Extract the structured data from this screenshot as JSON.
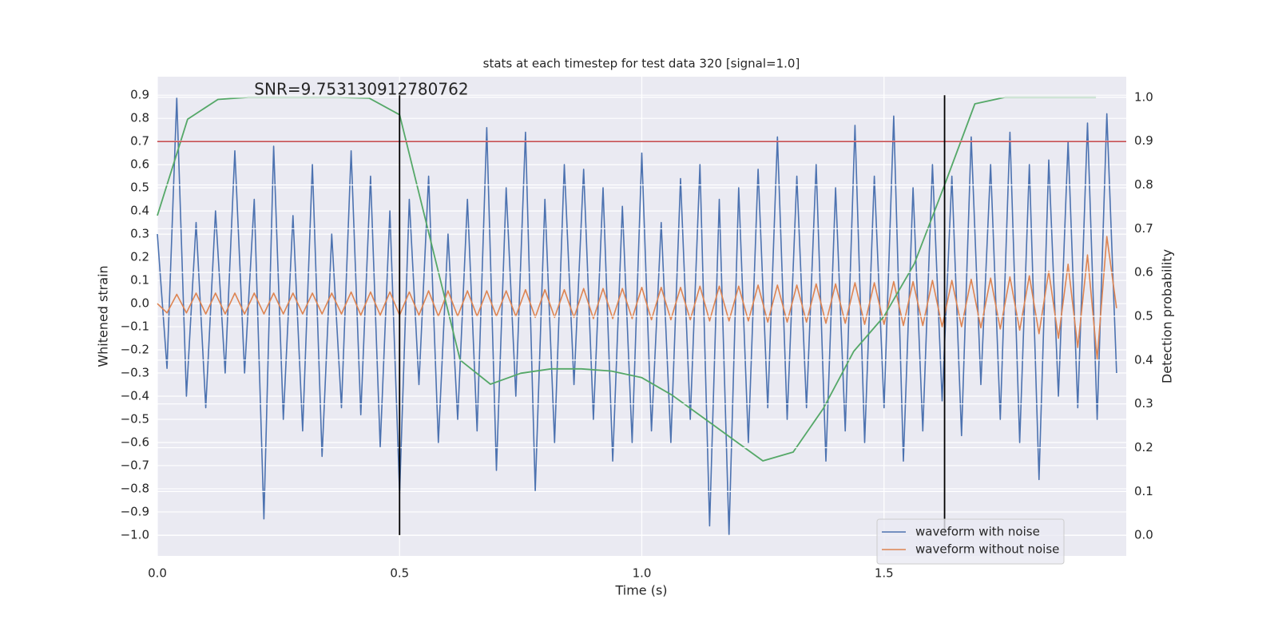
{
  "chart_data": {
    "type": "line",
    "title": "stats at each timestep for test data 320 [signal=1.0]",
    "x_label": "Time (s)",
    "y_label": "Whitened strain",
    "y2_label": "Detection probability",
    "annotation": {
      "text": "SNR=9.753130912780762",
      "x": 0.2,
      "y": 0.9
    },
    "xlim": [
      0,
      2.0
    ],
    "xticks": [
      {
        "value": 0,
        "label": "0.0"
      },
      0.5,
      {
        "value": 1,
        "label": "1.0"
      },
      1.5
    ],
    "ylim": [
      -1.09,
      0.98
    ],
    "yticks": [
      {
        "value": -1.0,
        "label": "−1.0"
      },
      {
        "value": -0.9,
        "label": "−0.9"
      },
      {
        "value": -0.8,
        "label": "−0.8"
      },
      {
        "value": -0.7,
        "label": "−0.7"
      },
      {
        "value": -0.6,
        "label": "−0.6"
      },
      {
        "value": -0.5,
        "label": "−0.5"
      },
      {
        "value": -0.4,
        "label": "−0.4"
      },
      {
        "value": -0.3,
        "label": "−0.3"
      },
      {
        "value": -0.2,
        "label": "−0.2"
      },
      {
        "value": -0.1,
        "label": "−0.1"
      },
      {
        "value": 0,
        "label": "0.0"
      },
      0.1,
      0.2,
      0.3,
      0.4,
      0.5,
      0.6,
      0.7,
      0.8,
      0.9
    ],
    "y2lim": [
      -0.047,
      1.047
    ],
    "y2ticks": [
      {
        "value": 0,
        "label": "0.0"
      },
      0.1,
      0.2,
      0.3,
      0.4,
      0.5,
      0.6,
      0.7,
      0.8,
      0.9,
      {
        "value": 1,
        "label": "1.0"
      }
    ],
    "grid": true,
    "legend": "lower right",
    "x": [
      0,
      0.02,
      0.04,
      0.06,
      0.08,
      0.1,
      0.12,
      0.14,
      0.16,
      0.18,
      0.2,
      0.22,
      0.24,
      0.26,
      0.28,
      0.3,
      0.32,
      0.34,
      0.36,
      0.38,
      0.4,
      0.42,
      0.44,
      0.46,
      0.48,
      0.5,
      0.52,
      0.54,
      0.56,
      0.58,
      0.6,
      0.62,
      0.64,
      0.66,
      0.68,
      0.7,
      0.72,
      0.74,
      0.76,
      0.78,
      0.8,
      0.82,
      0.84,
      0.86,
      0.88,
      0.9,
      0.92,
      0.94,
      0.96,
      0.98,
      1.0,
      1.02,
      1.04,
      1.06,
      1.08,
      1.1,
      1.12,
      1.14,
      1.16,
      1.18,
      1.2,
      1.22,
      1.24,
      1.26,
      1.28,
      1.3,
      1.32,
      1.34,
      1.36,
      1.38,
      1.4,
      1.42,
      1.44,
      1.46,
      1.48,
      1.5,
      1.52,
      1.54,
      1.56,
      1.58,
      1.6,
      1.62,
      1.64,
      1.66,
      1.68,
      1.7,
      1.72,
      1.74,
      1.76,
      1.78,
      1.8,
      1.82,
      1.84,
      1.86,
      1.88,
      1.9,
      1.92,
      1.94,
      1.96,
      1.98
    ],
    "series": [
      {
        "name": "waveform with noise",
        "color": "#4c72b0",
        "values": [
          0.3,
          -0.28,
          0.89,
          -0.4,
          0.35,
          -0.45,
          0.4,
          -0.3,
          0.66,
          -0.3,
          0.45,
          -0.93,
          0.68,
          -0.5,
          0.38,
          -0.55,
          0.6,
          -0.66,
          0.3,
          -0.45,
          0.66,
          -0.48,
          0.55,
          -0.62,
          0.4,
          -0.82,
          0.45,
          -0.35,
          0.55,
          -0.6,
          0.3,
          -0.5,
          0.45,
          -0.55,
          0.76,
          -0.72,
          0.5,
          -0.4,
          0.74,
          -0.81,
          0.45,
          -0.6,
          0.6,
          -0.35,
          0.58,
          -0.5,
          0.5,
          -0.68,
          0.42,
          -0.6,
          0.65,
          -0.55,
          0.35,
          -0.6,
          0.54,
          -0.5,
          0.6,
          -0.96,
          0.45,
          -1.0,
          0.5,
          -0.6,
          0.58,
          -0.45,
          0.72,
          -0.5,
          0.55,
          -0.45,
          0.6,
          -0.68,
          0.5,
          -0.55,
          0.77,
          -0.6,
          0.55,
          -0.45,
          0.81,
          -0.68,
          0.5,
          -0.55,
          0.6,
          -0.42,
          0.55,
          -0.57,
          0.72,
          -0.35,
          0.6,
          -0.5,
          0.74,
          -0.6,
          0.6,
          -0.76,
          0.62,
          -0.4,
          0.7,
          -0.45,
          0.78,
          -0.5,
          0.82,
          -0.3
        ]
      },
      {
        "name": "waveform without noise",
        "color": "#dd8452",
        "values": [
          0.0,
          -0.04,
          0.04,
          -0.04,
          0.045,
          -0.045,
          0.045,
          -0.045,
          0.045,
          -0.045,
          0.045,
          -0.045,
          0.045,
          -0.045,
          0.045,
          -0.045,
          0.045,
          -0.045,
          0.045,
          -0.045,
          0.05,
          -0.05,
          0.05,
          -0.05,
          0.05,
          -0.05,
          0.05,
          -0.05,
          0.055,
          -0.055,
          0.055,
          -0.055,
          0.055,
          -0.055,
          0.055,
          -0.055,
          0.055,
          -0.055,
          0.06,
          -0.06,
          0.06,
          -0.06,
          0.06,
          -0.06,
          0.065,
          -0.065,
          0.065,
          -0.065,
          0.065,
          -0.065,
          0.07,
          -0.07,
          0.07,
          -0.07,
          0.07,
          -0.07,
          0.075,
          -0.075,
          0.075,
          -0.075,
          0.075,
          -0.075,
          0.08,
          -0.08,
          0.08,
          -0.08,
          0.08,
          -0.08,
          0.085,
          -0.085,
          0.085,
          -0.085,
          0.09,
          -0.09,
          0.09,
          -0.09,
          0.095,
          -0.095,
          0.095,
          -0.095,
          0.1,
          -0.1,
          0.1,
          -0.1,
          0.105,
          -0.105,
          0.11,
          -0.11,
          0.115,
          -0.115,
          0.12,
          -0.13,
          0.14,
          -0.15,
          0.17,
          -0.19,
          0.21,
          -0.24,
          0.29,
          -0.02
        ]
      },
      {
        "color": "#55a868",
        "axis": "y2",
        "x": [
          0,
          0.0625,
          0.125,
          0.1875,
          0.25,
          0.3125,
          0.375,
          0.4375,
          0.5,
          0.5625,
          0.625,
          0.6875,
          0.75,
          0.8125,
          0.875,
          0.9375,
          1.0,
          1.0625,
          1.125,
          1.1875,
          1.25,
          1.3125,
          1.375,
          1.4375,
          1.5,
          1.5625,
          1.625,
          1.6875,
          1.75,
          1.8125,
          1.875,
          1.9375
        ],
        "values": [
          0.73,
          0.95,
          0.995,
          1.0,
          1.0,
          1.0,
          1.0,
          0.998,
          0.96,
          0.68,
          0.4,
          0.345,
          0.37,
          0.38,
          0.38,
          0.375,
          0.36,
          0.32,
          0.27,
          0.22,
          0.17,
          0.19,
          0.29,
          0.42,
          0.5,
          0.62,
          0.8,
          0.985,
          1.0,
          1.0,
          1.0,
          1.0
        ]
      }
    ],
    "hlines": [
      {
        "y": 0.7,
        "color": "#c44e52"
      }
    ],
    "vlines": [
      {
        "x": 0.5,
        "ymin": -1.0,
        "ymax": 0.9,
        "color": "#000000"
      },
      {
        "x": 1.625,
        "ymin": -1.0,
        "ymax": 0.9,
        "color": "#000000"
      }
    ]
  }
}
